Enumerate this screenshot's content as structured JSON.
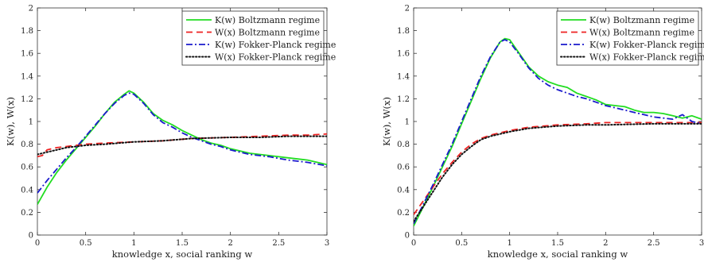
{
  "chart_data": [
    {
      "type": "line",
      "xlabel": "knowledge x, social ranking w",
      "ylabel": "K(w), W(x)",
      "xlim": [
        0,
        3
      ],
      "ylim": [
        0,
        2
      ],
      "xticks": [
        "0",
        "0.5",
        "1",
        "1.5",
        "2",
        "2.5",
        "3"
      ],
      "yticks": [
        "0",
        "0.2",
        "0.4",
        "0.6",
        "0.8",
        "1",
        "1.2",
        "1.4",
        "1.6",
        "1.8",
        "2"
      ],
      "grid": false,
      "legend": "top-right",
      "series": [
        {
          "name": "K(w) Boltzmann regime",
          "color": "#22dd22",
          "style": "solid",
          "x": [
            0,
            0.1,
            0.2,
            0.3,
            0.4,
            0.5,
            0.6,
            0.7,
            0.8,
            0.9,
            0.95,
            1.0,
            1.1,
            1.2,
            1.3,
            1.4,
            1.5,
            1.6,
            1.7,
            1.8,
            1.9,
            2.0,
            2.2,
            2.4,
            2.6,
            2.8,
            3.0
          ],
          "y": [
            0.27,
            0.42,
            0.55,
            0.66,
            0.76,
            0.86,
            0.96,
            1.07,
            1.17,
            1.24,
            1.27,
            1.25,
            1.17,
            1.07,
            1.01,
            0.97,
            0.92,
            0.88,
            0.84,
            0.81,
            0.79,
            0.76,
            0.72,
            0.7,
            0.68,
            0.66,
            0.62
          ]
        },
        {
          "name": "W(x) Boltzmann regime",
          "color": "#ee2222",
          "style": "dashed",
          "x": [
            0,
            0.05,
            0.1,
            0.2,
            0.3,
            0.5,
            0.7,
            1.0,
            1.3,
            1.6,
            2.0,
            2.3,
            2.6,
            2.8,
            3.0
          ],
          "y": [
            0.69,
            0.7,
            0.75,
            0.77,
            0.78,
            0.8,
            0.81,
            0.82,
            0.83,
            0.85,
            0.86,
            0.87,
            0.88,
            0.88,
            0.89
          ]
        },
        {
          "name": "K(w) Fokker-Planck regime",
          "color": "#1a1acc",
          "style": "dashdot",
          "x": [
            0,
            0.1,
            0.2,
            0.3,
            0.4,
            0.5,
            0.6,
            0.7,
            0.8,
            0.9,
            0.95,
            1.0,
            1.1,
            1.2,
            1.3,
            1.4,
            1.5,
            1.6,
            1.7,
            1.8,
            1.9,
            2.0,
            2.2,
            2.4,
            2.6,
            2.8,
            3.0
          ],
          "y": [
            0.37,
            0.48,
            0.58,
            0.68,
            0.77,
            0.87,
            0.97,
            1.07,
            1.16,
            1.23,
            1.25,
            1.24,
            1.16,
            1.06,
            0.99,
            0.95,
            0.9,
            0.86,
            0.83,
            0.8,
            0.78,
            0.75,
            0.71,
            0.69,
            0.66,
            0.64,
            0.61
          ]
        },
        {
          "name": "W(x) Fokker-Planck regime",
          "color": "#111111",
          "style": "dotted",
          "x": [
            0,
            0.1,
            0.2,
            0.3,
            0.5,
            0.7,
            1.0,
            1.3,
            1.6,
            2.0,
            2.3,
            2.6,
            3.0
          ],
          "y": [
            0.71,
            0.73,
            0.75,
            0.77,
            0.79,
            0.8,
            0.82,
            0.83,
            0.85,
            0.86,
            0.86,
            0.87,
            0.87
          ]
        }
      ]
    },
    {
      "type": "line",
      "xlabel": "knowledge x, social ranking w",
      "ylabel": "K(w), W(x)",
      "xlim": [
        0,
        3
      ],
      "ylim": [
        0,
        2
      ],
      "xticks": [
        "0",
        "0.5",
        "1",
        "1.5",
        "2",
        "2.5",
        "3"
      ],
      "yticks": [
        "0",
        "0.2",
        "0.4",
        "0.6",
        "0.8",
        "1",
        "1.2",
        "1.4",
        "1.6",
        "1.8",
        "2"
      ],
      "grid": false,
      "legend": "top-right",
      "series": [
        {
          "name": "K(w) Boltzmann regime",
          "color": "#22dd22",
          "style": "solid",
          "x": [
            0,
            0.1,
            0.2,
            0.3,
            0.4,
            0.5,
            0.6,
            0.7,
            0.8,
            0.9,
            0.95,
            1.0,
            1.1,
            1.2,
            1.3,
            1.4,
            1.5,
            1.6,
            1.7,
            1.8,
            1.9,
            2.0,
            2.1,
            2.2,
            2.3,
            2.4,
            2.5,
            2.6,
            2.7,
            2.8,
            2.9,
            3.0
          ],
          "y": [
            0.08,
            0.25,
            0.42,
            0.6,
            0.78,
            0.98,
            1.18,
            1.38,
            1.56,
            1.7,
            1.73,
            1.72,
            1.6,
            1.48,
            1.4,
            1.35,
            1.32,
            1.3,
            1.25,
            1.22,
            1.19,
            1.15,
            1.14,
            1.13,
            1.1,
            1.08,
            1.08,
            1.07,
            1.05,
            1.03,
            1.05,
            1.02
          ]
        },
        {
          "name": "W(x) Boltzmann regime",
          "color": "#ee2222",
          "style": "dashed",
          "x": [
            0,
            0.1,
            0.2,
            0.3,
            0.4,
            0.5,
            0.6,
            0.7,
            0.8,
            1.0,
            1.2,
            1.5,
            1.8,
            2.0,
            2.5,
            3.0
          ],
          "y": [
            0.18,
            0.3,
            0.42,
            0.54,
            0.64,
            0.73,
            0.8,
            0.85,
            0.88,
            0.92,
            0.95,
            0.97,
            0.98,
            0.99,
            0.99,
            0.99
          ]
        },
        {
          "name": "K(w) Fokker-Planck regime",
          "color": "#1a1acc",
          "style": "dashdot",
          "x": [
            0,
            0.1,
            0.2,
            0.3,
            0.4,
            0.5,
            0.6,
            0.7,
            0.8,
            0.9,
            0.95,
            1.0,
            1.1,
            1.2,
            1.3,
            1.4,
            1.5,
            1.6,
            1.7,
            1.8,
            1.9,
            2.0,
            2.1,
            2.2,
            2.3,
            2.4,
            2.5,
            2.6,
            2.7,
            2.8,
            2.9,
            3.0
          ],
          "y": [
            0.1,
            0.27,
            0.44,
            0.62,
            0.8,
            1.0,
            1.2,
            1.4,
            1.57,
            1.7,
            1.72,
            1.7,
            1.59,
            1.47,
            1.38,
            1.32,
            1.28,
            1.25,
            1.22,
            1.2,
            1.17,
            1.14,
            1.12,
            1.1,
            1.08,
            1.06,
            1.04,
            1.03,
            1.02,
            1.06,
            1.0,
            0.98
          ]
        },
        {
          "name": "W(x) Fokker-Planck regime",
          "color": "#111111",
          "style": "dotted",
          "x": [
            0,
            0.1,
            0.2,
            0.3,
            0.4,
            0.5,
            0.6,
            0.7,
            0.8,
            1.0,
            1.2,
            1.5,
            1.8,
            2.0,
            2.5,
            3.0
          ],
          "y": [
            0.12,
            0.25,
            0.38,
            0.51,
            0.62,
            0.71,
            0.78,
            0.84,
            0.87,
            0.91,
            0.94,
            0.96,
            0.97,
            0.97,
            0.98,
            0.98
          ]
        }
      ]
    }
  ]
}
